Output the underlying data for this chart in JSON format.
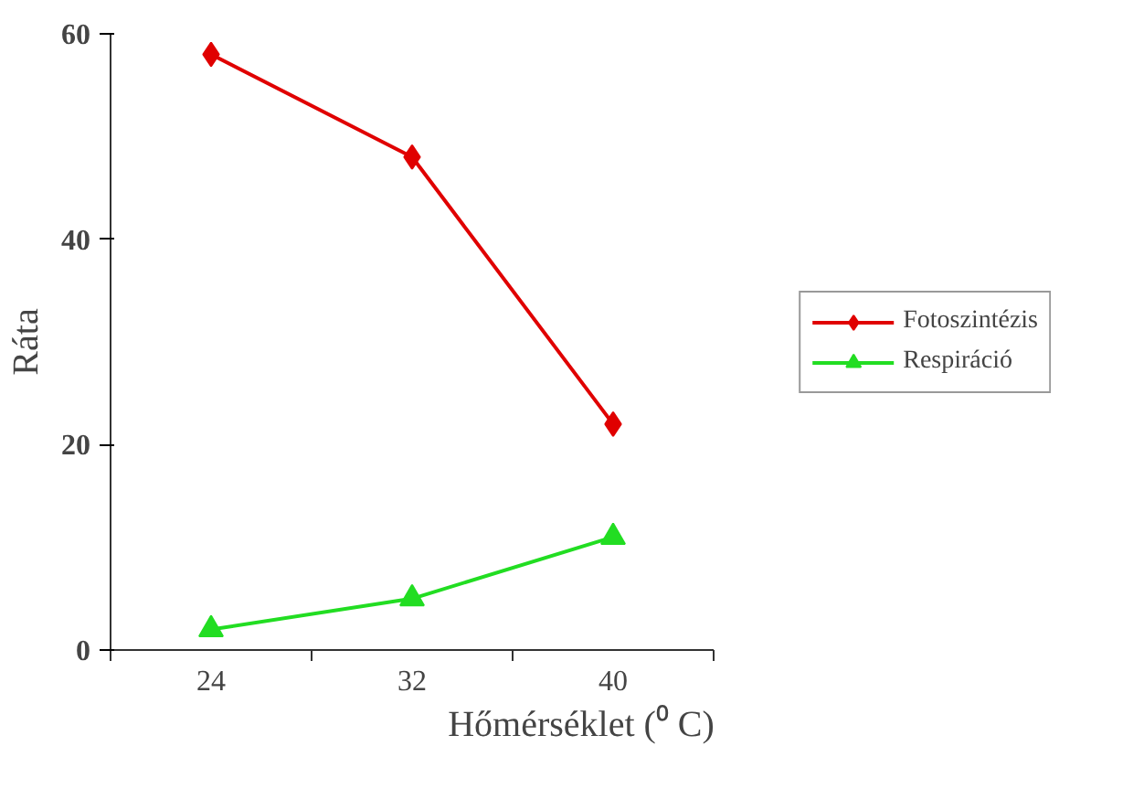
{
  "chart_data": {
    "type": "line",
    "xlabel": "Hőmérséklet (⁰ C)",
    "ylabel": "Ráta",
    "categories": [
      "24",
      "32",
      "40"
    ],
    "series": [
      {
        "name": "Fotoszintézis",
        "color": "#e00000",
        "values": [
          58,
          48,
          22
        ],
        "marker": "diamond"
      },
      {
        "name": "Respiráció",
        "color": "#22dd22",
        "values": [
          2,
          5,
          11
        ],
        "marker": "triangle"
      }
    ],
    "ylim": [
      0,
      60
    ],
    "yticks": [
      0,
      20,
      40,
      60
    ],
    "grid": false,
    "legend": "right"
  }
}
